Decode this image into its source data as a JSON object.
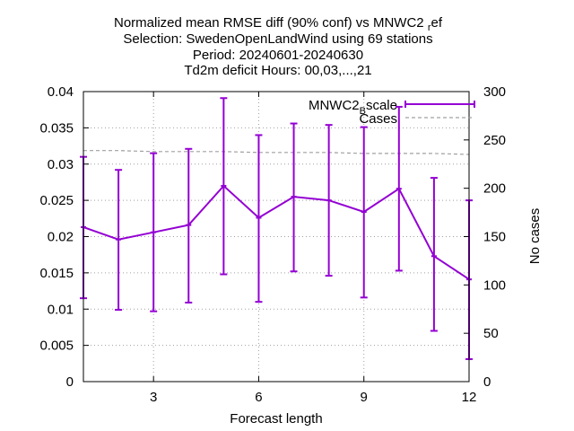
{
  "colors": {
    "series": "#9400d3",
    "cases": "#a0a0a0",
    "grid": "#a0a0a0",
    "axis": "#000000",
    "background": "#ffffff"
  },
  "chart_data": {
    "type": "line",
    "title_lines": [
      "Normalized mean RMSE diff (90% conf) vs MNWC2_ref",
      "Selection: SwedenOpenLandWind using    69 stations",
      "Period: 20240601-20240630",
      "Td2m deficit   Hours: 00,03,...,21"
    ],
    "xlabel": "Forecast length",
    "ylabel": "",
    "y2label": "No cases",
    "xlim": [
      1,
      12
    ],
    "ylim": [
      0,
      0.04
    ],
    "y2lim": [
      0,
      300
    ],
    "grid": true,
    "legend_position": "top-right",
    "x_ticks": [
      3,
      6,
      9,
      12
    ],
    "x_tick_labels": [
      "3",
      "6",
      "9",
      "12"
    ],
    "y_ticks": [
      0,
      0.005,
      0.01,
      0.015,
      0.02,
      0.025,
      0.03,
      0.035,
      0.04
    ],
    "y_tick_labels": [
      "0",
      "0.005",
      "0.01",
      "0.015",
      "0.02",
      "0.025",
      "0.03",
      "0.035",
      "0.04"
    ],
    "y2_ticks": [
      0,
      50,
      100,
      150,
      200,
      250,
      300
    ],
    "y2_tick_labels": [
      "0",
      "50",
      "100",
      "150",
      "200",
      "250",
      "300"
    ],
    "series": [
      {
        "name": "MNWC2_Bscale",
        "legend_main": "MNWC2",
        "legend_sub": "B",
        "legend_rest": "scale",
        "axis": "y",
        "style": "line-errorbars",
        "x": [
          1,
          2,
          3,
          4,
          5,
          6,
          7,
          8,
          9,
          10,
          11,
          12
        ],
        "y": [
          0.0213,
          0.0196,
          0.0206,
          0.0216,
          0.027,
          0.0226,
          0.0255,
          0.025,
          0.0234,
          0.0266,
          0.0173,
          0.0141
        ],
        "err_low": [
          0.0115,
          0.0099,
          0.0097,
          0.0109,
          0.0148,
          0.011,
          0.0152,
          0.0146,
          0.0116,
          0.0153,
          0.007,
          0.0031
        ],
        "err_high": [
          0.031,
          0.0292,
          0.0315,
          0.0321,
          0.0391,
          0.034,
          0.0356,
          0.0354,
          0.0351,
          0.0379,
          0.0281,
          0.025
        ]
      },
      {
        "name": "Cases",
        "axis": "y2",
        "style": "dashed",
        "x": [
          1,
          2,
          3,
          4,
          5,
          6,
          7,
          8,
          9,
          10,
          11,
          12
        ],
        "y": [
          239,
          239,
          238,
          238,
          238,
          237,
          237,
          237,
          236,
          236,
          236,
          235
        ]
      }
    ]
  }
}
